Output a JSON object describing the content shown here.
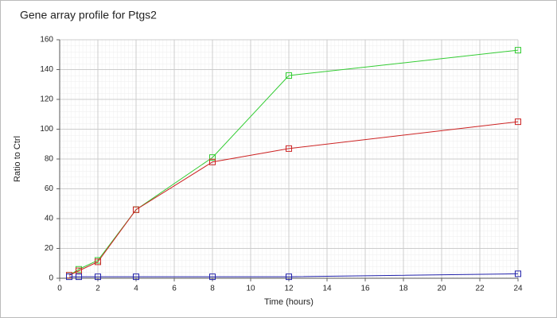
{
  "chart_data": {
    "type": "line",
    "title": "Gene array profile for Ptgs2",
    "x_label": "Time (hours)",
    "y_label": "Ratio to Ctrl",
    "x": [
      0.5,
      1,
      2,
      4,
      8,
      12,
      24
    ],
    "series": [
      {
        "color": "#33cc33",
        "values": [
          2,
          6,
          12,
          46,
          81,
          136,
          153
        ]
      },
      {
        "color": "#cc2222",
        "values": [
          2,
          5,
          11,
          46,
          78,
          87,
          105
        ]
      },
      {
        "color": "#2222aa",
        "values": [
          1,
          1,
          1,
          1,
          1,
          1,
          3
        ]
      }
    ],
    "xlim": [
      0,
      24
    ],
    "xticks": [
      0,
      2,
      4,
      6,
      8,
      10,
      12,
      14,
      16,
      18,
      20,
      22,
      24
    ],
    "ylim": [
      0,
      160
    ],
    "yticks": [
      0,
      20,
      40,
      60,
      80,
      100,
      120,
      140,
      160
    ],
    "grid": true
  }
}
